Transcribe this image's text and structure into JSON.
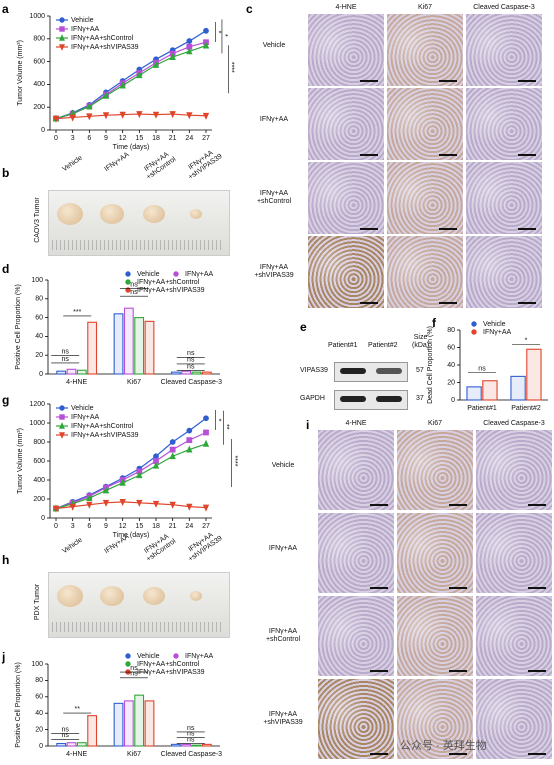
{
  "panel_letters": [
    "a",
    "b",
    "c",
    "d",
    "e",
    "f",
    "g",
    "h",
    "i",
    "j"
  ],
  "chart_data": [
    {
      "type": "line",
      "x": [
        0,
        3,
        6,
        9,
        12,
        15,
        18,
        21,
        24,
        27
      ],
      "xlim": [
        0,
        27
      ],
      "xticks": [
        0,
        3,
        6,
        9,
        12,
        15,
        18,
        21,
        24,
        27
      ],
      "ylim": [
        0,
        1000
      ],
      "yticks": [
        0,
        200,
        400,
        600,
        800,
        1000
      ],
      "xlabel": "Time (days)",
      "ylabel": "Tumor Volume (mm³)",
      "legend": "upper left",
      "series": [
        {
          "name": "Vehicle",
          "color": "#2f5fd0",
          "marker": "circle",
          "values": [
            100,
            150,
            220,
            330,
            430,
            530,
            620,
            700,
            780,
            870
          ]
        },
        {
          "name": "IFNγ+AA",
          "color": "#b84fd8",
          "marker": "square",
          "values": [
            100,
            140,
            210,
            310,
            410,
            500,
            590,
            670,
            730,
            770
          ]
        },
        {
          "name": "IFNγ+AA+shControl",
          "color": "#2fa83a",
          "marker": "triangle-up",
          "values": [
            100,
            145,
            205,
            300,
            390,
            480,
            570,
            640,
            690,
            740
          ]
        },
        {
          "name": "IFNγ+AA+shVIPAS39",
          "color": "#e0442a",
          "marker": "triangle-down",
          "values": [
            100,
            110,
            120,
            130,
            135,
            140,
            135,
            140,
            130,
            125
          ]
        }
      ],
      "annotations": [
        "*",
        "*",
        "****"
      ]
    },
    {
      "type": "bar",
      "categories": [
        "4-HNE",
        "Ki67",
        "Cleaved Caspase-3"
      ],
      "ylim": [
        0,
        100
      ],
      "yticks": [
        0,
        20,
        40,
        60,
        80,
        100
      ],
      "ylabel": "Positive Cell Proportion (%)",
      "legend": "upper right",
      "series": [
        {
          "name": "Vehicle",
          "color": "#2f5fd0",
          "values": [
            3,
            64,
            2
          ]
        },
        {
          "name": "IFNγ+AA",
          "color": "#b84fd8",
          "values": [
            5,
            70,
            3
          ]
        },
        {
          "name": "IFNγ+AA+shControl",
          "color": "#2fa83a",
          "values": [
            4,
            60,
            2
          ]
        },
        {
          "name": "IFNγ+AA+shVIPAS39",
          "color": "#e0442a",
          "values": [
            55,
            56,
            2
          ]
        }
      ],
      "annotations": [
        "***",
        "ns",
        "ns",
        "ns",
        "ns",
        "ns",
        "ns",
        "ns"
      ]
    },
    {
      "type": "bar",
      "categories": [
        "Patient#1",
        "Patient#2"
      ],
      "ylim": [
        0,
        80
      ],
      "yticks": [
        0,
        20,
        40,
        60,
        80
      ],
      "ylabel": "Dead Cell Proportion (%)",
      "legend": "upper left",
      "series": [
        {
          "name": "Vehicle",
          "color": "#2f5fd0",
          "values": [
            15,
            27
          ]
        },
        {
          "name": "IFNγ+AA",
          "color": "#e0442a",
          "values": [
            22,
            58
          ]
        }
      ],
      "annotations": [
        "ns",
        "*"
      ]
    },
    {
      "type": "line",
      "x": [
        0,
        3,
        6,
        9,
        12,
        15,
        18,
        21,
        24,
        27
      ],
      "xlim": [
        0,
        27
      ],
      "xticks": [
        0,
        3,
        6,
        9,
        12,
        15,
        18,
        21,
        24,
        27
      ],
      "ylim": [
        0,
        1200
      ],
      "yticks": [
        0,
        200,
        400,
        600,
        800,
        1000,
        1200
      ],
      "xlabel": "Time (days)",
      "ylabel": "Tumor Volume (mm³)",
      "legend": "upper left",
      "series": [
        {
          "name": "Vehicle",
          "color": "#2f5fd0",
          "marker": "circle",
          "values": [
            100,
            170,
            240,
            330,
            420,
            520,
            650,
            800,
            920,
            1050
          ]
        },
        {
          "name": "IFNγ+AA",
          "color": "#b84fd8",
          "marker": "square",
          "values": [
            100,
            160,
            230,
            320,
            400,
            490,
            600,
            720,
            820,
            900
          ]
        },
        {
          "name": "IFNγ+AA+shControl",
          "color": "#2fa83a",
          "marker": "triangle-up",
          "values": [
            100,
            150,
            210,
            290,
            370,
            450,
            550,
            650,
            720,
            780
          ]
        },
        {
          "name": "IFNγ+AA+shVIPAS39",
          "color": "#e0442a",
          "marker": "triangle-down",
          "values": [
            100,
            120,
            140,
            160,
            170,
            160,
            150,
            140,
            120,
            110
          ]
        }
      ],
      "annotations": [
        "*",
        "**",
        "****"
      ]
    },
    {
      "type": "bar",
      "categories": [
        "4-HNE",
        "Ki67",
        "Cleaved Caspase-3"
      ],
      "ylim": [
        0,
        100
      ],
      "yticks": [
        0,
        20,
        40,
        60,
        80,
        100
      ],
      "ylabel": "Positive Cell Proportion (%)",
      "legend": "upper right",
      "series": [
        {
          "name": "Vehicle",
          "color": "#2f5fd0",
          "values": [
            3,
            52,
            2
          ]
        },
        {
          "name": "IFNγ+AA",
          "color": "#b84fd8",
          "values": [
            4,
            55,
            2
          ]
        },
        {
          "name": "IFNγ+AA+shControl",
          "color": "#2fa83a",
          "values": [
            4,
            62,
            1
          ]
        },
        {
          "name": "IFNγ+AA+shVIPAS39",
          "color": "#e0442a",
          "values": [
            37,
            55,
            2
          ]
        }
      ],
      "annotations": [
        "**",
        "ns",
        "ns",
        "ns",
        "ns",
        "ns",
        "ns",
        "ns"
      ]
    }
  ],
  "tumor_photos": [
    {
      "labels": [
        "Vehicle",
        "IFNγ+AA",
        "IFNγ+AA\n+shControl",
        "IFNγ+AA\n+shVIPAS39"
      ],
      "side_label": "CAOV3 Tumor"
    },
    {
      "labels": [
        "Vehicle",
        "IFNγ+AA",
        "IFNγ+AA\n+shControl",
        "IFNγ+AA\n+shVIPAS39"
      ],
      "side_label": "PDX Tumor"
    }
  ],
  "micrographs": [
    {
      "columns": [
        "4-HNE",
        "Ki67",
        "Cleaved Caspase-3"
      ],
      "rows": [
        "Vehicle",
        "IFNγ+AA",
        "IFNγ+AA\n+shControl",
        "IFNγ+AA\n+shVIPAS39"
      ]
    },
    {
      "columns": [
        "4-HNE",
        "Ki67",
        "Cleaved Caspase-3"
      ],
      "rows": [
        "Vehicle",
        "IFNγ+AA",
        "IFNγ+AA\n+shControl",
        "IFNγ+AA\n+shVIPAS39"
      ]
    }
  ],
  "blot": {
    "columns": [
      "Patient#1",
      "Patient#2"
    ],
    "size_header": "Size\n(kDa)",
    "rows": [
      {
        "label": "VIPAS39",
        "size": 57
      },
      {
        "label": "GAPDH",
        "size": 37
      }
    ]
  },
  "watermark": "公众号 · 英拜生物"
}
